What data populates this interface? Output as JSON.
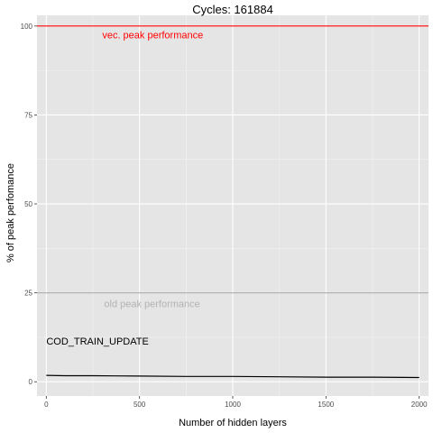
{
  "chart_data": {
    "type": "line",
    "title": "Cycles:  161884",
    "xlabel": "Number of hidden layers",
    "ylabel": "% of peak perfomance",
    "xlim": [
      -50,
      2050
    ],
    "ylim": [
      -4,
      103
    ],
    "x_ticks": [
      0,
      500,
      1000,
      1500,
      2000
    ],
    "y_ticks": [
      0,
      25,
      50,
      75,
      100
    ],
    "grid": true,
    "series": [
      {
        "x": [
          0,
          100,
          250,
          500,
          750,
          1000,
          1250,
          1500,
          1750,
          2000
        ],
        "y": [
          1.8,
          1.7,
          1.7,
          1.6,
          1.5,
          1.5,
          1.4,
          1.3,
          1.3,
          1.2
        ],
        "color": "#000000"
      }
    ],
    "reference_lines": [
      {
        "y": 100,
        "label": "vec. peak performance",
        "label_x": 300,
        "label_y": 97.5,
        "color": "#ff0000"
      },
      {
        "y": 25,
        "label": "old peak performance",
        "label_x": 310,
        "label_y": 22,
        "color": "#b3b3b3"
      }
    ],
    "annotations": [
      {
        "text": "COD_TRAIN_UPDATE",
        "x": 0,
        "y": 11.5
      }
    ],
    "colors": {
      "panel": "#e5e5e5",
      "grid_major": "#ffffff",
      "grid_minor": "#f2f2f2"
    }
  }
}
